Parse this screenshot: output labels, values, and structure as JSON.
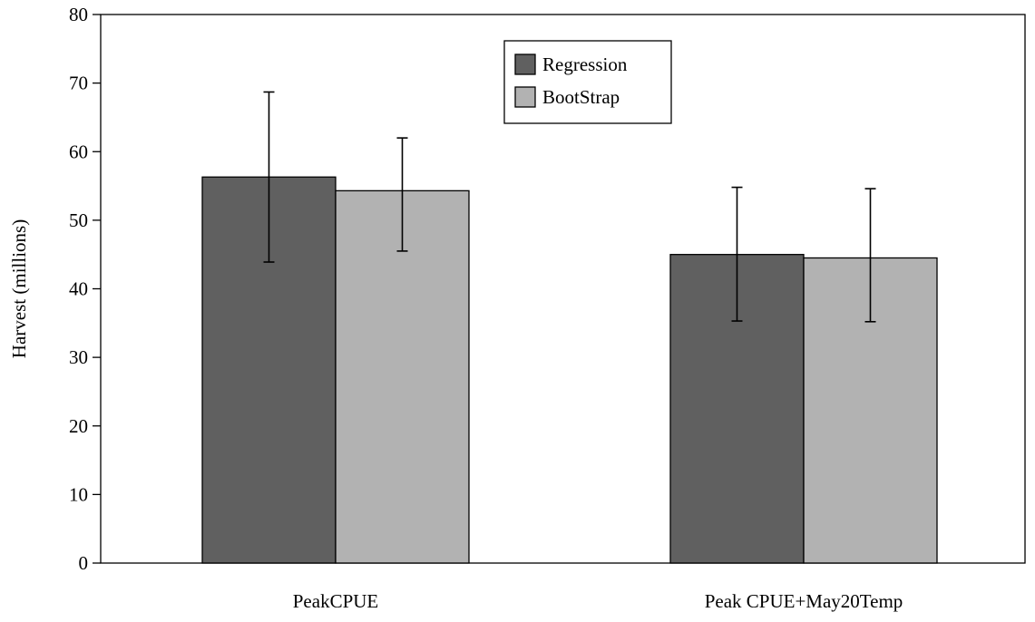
{
  "chart_data": {
    "type": "bar",
    "title": "",
    "xlabel": "",
    "ylabel": "Harvest (millions)",
    "ylim": [
      0,
      80
    ],
    "yticks": [
      0,
      10,
      20,
      30,
      40,
      50,
      60,
      70,
      80
    ],
    "categories": [
      "PeakCPUE",
      "Peak CPUE+May20Temp"
    ],
    "series": [
      {
        "name": "Regression",
        "color": "#606060",
        "values": [
          56.3,
          45.0
        ],
        "error_low": [
          43.9,
          35.3
        ],
        "error_high": [
          68.7,
          54.8
        ]
      },
      {
        "name": "BootStrap",
        "color": "#b2b2b2",
        "values": [
          54.3,
          44.5
        ],
        "error_low": [
          45.5,
          35.2
        ],
        "error_high": [
          62.0,
          54.6
        ]
      }
    ],
    "grid": false,
    "legend_position": "top-center"
  }
}
